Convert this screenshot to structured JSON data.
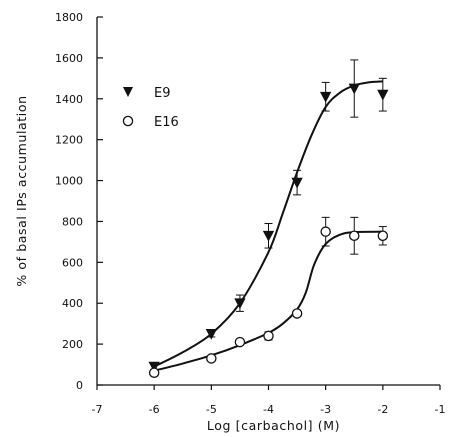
{
  "chart_data": {
    "type": "scatter",
    "xlabel": "Log [carbachol] (M)",
    "ylabel": "% of basal IPs accumulation",
    "xlim": [
      -7,
      -1
    ],
    "ylim": [
      0,
      1800
    ],
    "x_ticks": [
      -7,
      -6,
      -5,
      -4,
      -3,
      -2,
      -1
    ],
    "x_tick_labels": [
      "-7",
      "-6",
      "-5",
      "-4",
      "-3",
      "-2",
      "-1"
    ],
    "y_ticks": [
      0,
      200,
      400,
      600,
      800,
      1000,
      1200,
      1400,
      1600,
      1800
    ],
    "y_tick_labels": [
      "0",
      "200",
      "400",
      "600",
      "800",
      "1000",
      "1200",
      "1400",
      "1600",
      "1800"
    ],
    "legend_position": "top-left",
    "grid": false,
    "series": [
      {
        "name": "E9",
        "marker": "filled-triangle-down",
        "points": [
          {
            "x": -6,
            "y": 90,
            "err": 15
          },
          {
            "x": -5,
            "y": 250,
            "err": 15
          },
          {
            "x": -4.5,
            "y": 400,
            "err": 40
          },
          {
            "x": -4,
            "y": 730,
            "err": 60
          },
          {
            "x": -3.5,
            "y": 990,
            "err": 60
          },
          {
            "x": -3,
            "y": 1410,
            "err": 70
          },
          {
            "x": -2.5,
            "y": 1450,
            "err": 140
          },
          {
            "x": -2,
            "y": 1420,
            "err": 80
          }
        ],
        "fit": [
          {
            "x": -6,
            "y": 90
          },
          {
            "x": -5.5,
            "y": 160
          },
          {
            "x": -5,
            "y": 250
          },
          {
            "x": -4.5,
            "y": 400
          },
          {
            "x": -4,
            "y": 650
          },
          {
            "x": -3.75,
            "y": 840
          },
          {
            "x": -3.5,
            "y": 1040
          },
          {
            "x": -3.25,
            "y": 1220
          },
          {
            "x": -3,
            "y": 1360
          },
          {
            "x": -2.75,
            "y": 1430
          },
          {
            "x": -2.5,
            "y": 1465
          },
          {
            "x": -2.25,
            "y": 1480
          },
          {
            "x": -2,
            "y": 1485
          }
        ]
      },
      {
        "name": "E16",
        "marker": "open-circle",
        "points": [
          {
            "x": -6,
            "y": 60,
            "err": 10
          },
          {
            "x": -5,
            "y": 130,
            "err": 10
          },
          {
            "x": -4.5,
            "y": 210,
            "err": 10
          },
          {
            "x": -4,
            "y": 240,
            "err": 20
          },
          {
            "x": -3.5,
            "y": 350,
            "err": 15
          },
          {
            "x": -3,
            "y": 750,
            "err": 70
          },
          {
            "x": -2.5,
            "y": 730,
            "err": 90
          },
          {
            "x": -2,
            "y": 730,
            "err": 45
          }
        ],
        "fit": [
          {
            "x": -6,
            "y": 70
          },
          {
            "x": -5.5,
            "y": 105
          },
          {
            "x": -5,
            "y": 145
          },
          {
            "x": -4.5,
            "y": 195
          },
          {
            "x": -4,
            "y": 255
          },
          {
            "x": -3.75,
            "y": 300
          },
          {
            "x": -3.5,
            "y": 370
          },
          {
            "x": -3.35,
            "y": 450
          },
          {
            "x": -3.2,
            "y": 590
          },
          {
            "x": -3,
            "y": 690
          },
          {
            "x": -2.75,
            "y": 735
          },
          {
            "x": -2.5,
            "y": 748
          },
          {
            "x": -2,
            "y": 750
          }
        ]
      }
    ]
  }
}
